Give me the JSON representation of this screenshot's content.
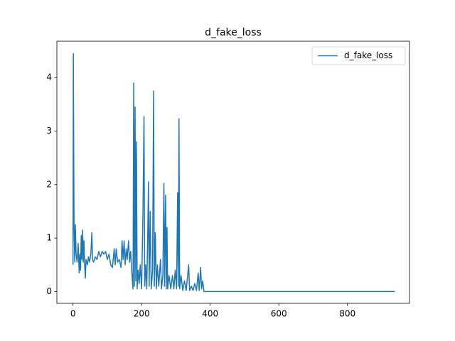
{
  "chart_data": {
    "type": "line",
    "title": "d_fake_loss",
    "x": [
      0,
      1,
      3,
      5,
      7,
      9,
      12,
      15,
      18,
      20,
      22,
      24,
      26,
      28,
      30,
      32,
      34,
      36,
      38,
      42,
      45,
      48,
      52,
      55,
      57,
      60,
      65,
      70,
      75,
      80,
      85,
      90,
      95,
      100,
      105,
      110,
      115,
      120,
      123,
      126,
      130,
      135,
      140,
      143,
      146,
      149,
      152,
      155,
      158,
      162,
      165,
      168,
      172,
      175,
      177,
      179,
      181,
      183,
      185,
      187,
      190,
      193,
      196,
      200,
      204,
      207,
      209,
      212,
      215,
      218,
      220,
      222,
      225,
      228,
      232,
      235,
      237,
      240,
      243,
      246,
      250,
      255,
      258,
      262,
      265,
      267,
      270,
      272,
      274,
      276,
      280,
      285,
      290,
      294,
      298,
      302,
      305,
      307,
      309,
      311,
      315,
      320,
      325,
      330,
      335,
      337,
      340,
      345,
      350,
      355,
      360,
      365,
      368,
      372,
      375,
      378,
      382,
      400,
      450,
      500,
      600,
      700,
      800,
      938
    ],
    "series": [
      {
        "name": "d_fake_loss",
        "color": "#1f77b4",
        "values": [
          0.5,
          4.45,
          1.3,
          0.55,
          1.25,
          0.7,
          0.55,
          0.9,
          0.35,
          0.7,
          0.4,
          1.05,
          0.6,
          1.15,
          0.55,
          0.95,
          0.5,
          0.25,
          0.6,
          0.5,
          0.65,
          0.55,
          0.7,
          1.1,
          0.6,
          0.55,
          0.65,
          0.6,
          0.75,
          0.65,
          0.75,
          0.7,
          0.75,
          0.6,
          0.7,
          0.5,
          0.45,
          0.8,
          0.5,
          0.8,
          0.55,
          0.6,
          0.45,
          0.95,
          0.6,
          0.95,
          0.5,
          0.8,
          0.6,
          0.95,
          0.55,
          0.75,
          0.3,
          0.05,
          3.9,
          0.1,
          3.45,
          0.2,
          2.8,
          0.05,
          0.4,
          0.15,
          0.5,
          0.05,
          1.5,
          3.27,
          0.1,
          0.5,
          0.05,
          1.1,
          2.05,
          0.1,
          1.5,
          0.05,
          0.4,
          3.75,
          0.1,
          1.1,
          0.05,
          0.5,
          0.1,
          0.6,
          0.05,
          0.3,
          2.02,
          0.1,
          1.8,
          0.05,
          1.2,
          0.05,
          0.3,
          0.05,
          0.3,
          0.05,
          0.4,
          0.05,
          1.85,
          0.1,
          3.23,
          0.05,
          0.3,
          0.02,
          0.2,
          0.02,
          0.35,
          0.5,
          0.02,
          0.1,
          0.02,
          0.15,
          0.02,
          0.35,
          0.02,
          0.45,
          0.05,
          0.2,
          0,
          0,
          0,
          0,
          0,
          0,
          0,
          0
        ]
      }
    ],
    "xlim": [
      -47,
      981
    ],
    "ylim": [
      -0.22,
      4.68
    ],
    "xticks": [
      0,
      200,
      400,
      600,
      800
    ],
    "yticks": [
      0,
      1,
      2,
      3,
      4
    ],
    "legend": "upper right"
  }
}
